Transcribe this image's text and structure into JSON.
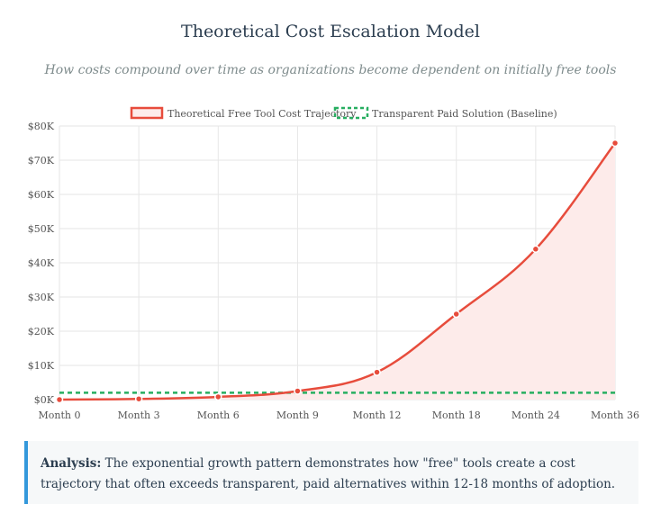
{
  "chart_data": {
    "type": "line",
    "title": "Theoretical Cost Escalation Model",
    "subtitle": "How costs compound over time as organizations become dependent on initially free tools",
    "categories": [
      "Month 0",
      "Month 3",
      "Month 6",
      "Month 9",
      "Month 12",
      "Month 18",
      "Month 24",
      "Month 36"
    ],
    "series": [
      {
        "name": "Theoretical Free Tool Cost Trajectory",
        "values": [
          0,
          200,
          800,
          2500,
          8000,
          25000,
          44000,
          75000
        ],
        "color": "#e74c3c",
        "fill": "#fdebea",
        "style": "solid"
      },
      {
        "name": "Transparent Paid Solution (Baseline)",
        "values": [
          2000,
          2000,
          2000,
          2000,
          2000,
          2000,
          2000,
          2000
        ],
        "color": "#27ae60",
        "style": "dashed"
      }
    ],
    "y_ticks": [
      "$0K",
      "$10K",
      "$20K",
      "$30K",
      "$40K",
      "$50K",
      "$60K",
      "$70K",
      "$80K"
    ],
    "ylim": [
      0,
      80000
    ],
    "xlabel": "",
    "ylabel": "",
    "grid": true,
    "legend_position": "top"
  },
  "analysis": {
    "label": "Analysis:",
    "text": " The exponential growth pattern demonstrates how \"free\" tools create a cost trajectory that often exceeds transparent, paid alternatives within 12-18 months of adoption."
  }
}
